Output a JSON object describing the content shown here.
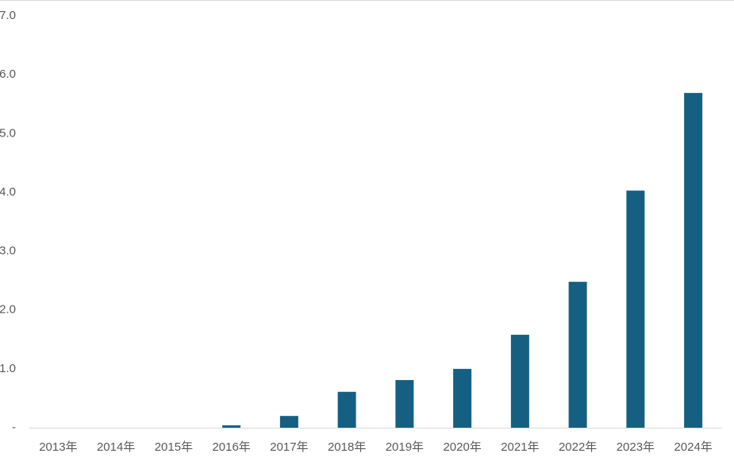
{
  "chart_data": {
    "type": "bar",
    "categories": [
      "2013年",
      "2014年",
      "2015年",
      "2016年",
      "2017年",
      "2018年",
      "2019年",
      "2020年",
      "2021年",
      "2022年",
      "2023年",
      "2024年"
    ],
    "values": [
      0,
      0,
      0,
      0.04,
      0.2,
      0.61,
      0.81,
      1.0,
      1.58,
      2.48,
      4.03,
      5.69
    ],
    "color": "#156082",
    "ylim": [
      0,
      7
    ],
    "yticks": [
      {
        "value": 0,
        "label": "-"
      },
      {
        "value": 1,
        "label": "1.0"
      },
      {
        "value": 2,
        "label": "2.0"
      },
      {
        "value": 3,
        "label": "3.0"
      },
      {
        "value": 4,
        "label": "4.0"
      },
      {
        "value": 5,
        "label": "5.0"
      },
      {
        "value": 6,
        "label": "6.0"
      },
      {
        "value": 7,
        "label": "7.0"
      }
    ],
    "grid": false
  }
}
